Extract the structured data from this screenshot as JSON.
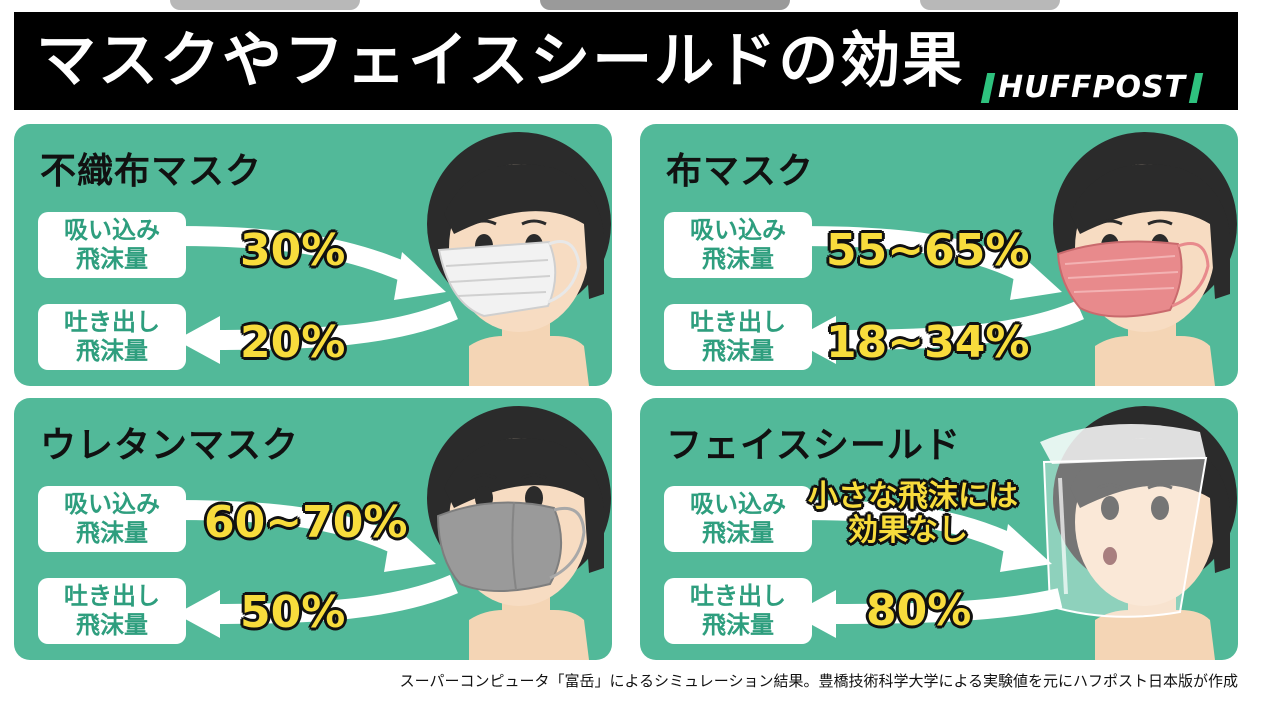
{
  "title": "マスクやフェイスシールドの効果",
  "logo": "HUFFPOST",
  "colors": {
    "panel_bg": "#52b999",
    "value_yellow": "#f8dc3c",
    "label_green": "#2e9e7e",
    "logo_green": "#2ec27e"
  },
  "labels": {
    "inhale_1": "吸い込み",
    "inhale_2": "飛沫量",
    "exhale_1": "吐き出し",
    "exhale_2": "飛沫量"
  },
  "panels": [
    {
      "title": "不織布マスク",
      "inhale": "30%",
      "exhale": "20%",
      "icon": "woman-nonwoven-mask-illustration"
    },
    {
      "title": "布マスク",
      "inhale": "55~65%",
      "exhale": "18~34%",
      "icon": "woman-cloth-mask-illustration"
    },
    {
      "title": "ウレタンマスク",
      "inhale": "60~70%",
      "exhale": "50%",
      "icon": "woman-urethane-mask-illustration"
    },
    {
      "title": "フェイスシールド",
      "inhale_1": "小さな飛沫には",
      "inhale_2": "効果なし",
      "exhale": "80%",
      "icon": "woman-face-shield-illustration"
    }
  ],
  "caption": "スーパーコンピュータ「富岳」によるシミュレーション結果。豊橋技術科学大学による実験値を元にハフポスト日本版が作成"
}
